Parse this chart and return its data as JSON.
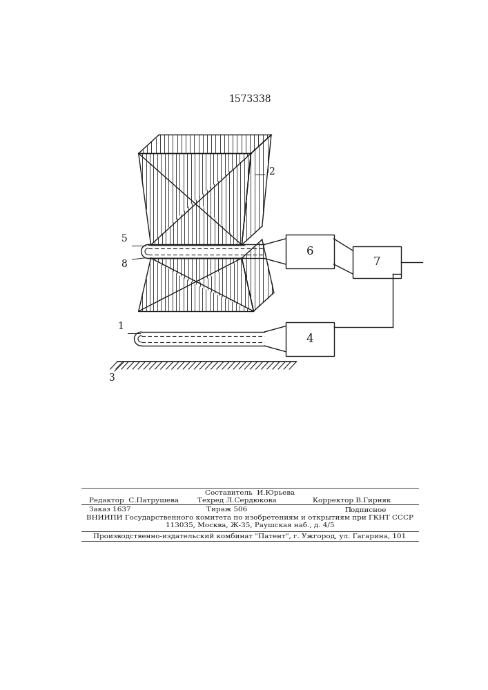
{
  "title": "1573338",
  "bg_color": "#ffffff",
  "fig_width": 7.07,
  "fig_height": 10.0,
  "footer_sestavitel": "Составитель  И.Юрьева",
  "footer_tekhred": "Техред Л.Сердюкова",
  "footer_redaktor": "Редактор  С.Патрушева",
  "footer_korrektor": "Корректор В.Гирняк",
  "footer_zakaz": "Заказ 1637",
  "footer_tirazh": "Тираж 506",
  "footer_podpisnoe": "Подписное",
  "footer_vniipи": "ВНИИПИ Государственного комитета по изобретениям и открытиям при ГКНТ СССР",
  "footer_address": "113035, Москва, Ж-35, Раушская наб., д. 4/5",
  "footer_patent": "Производственно-издательский комбинат \"Патент\", г. Ужгород, ул. Гагарина, 101"
}
